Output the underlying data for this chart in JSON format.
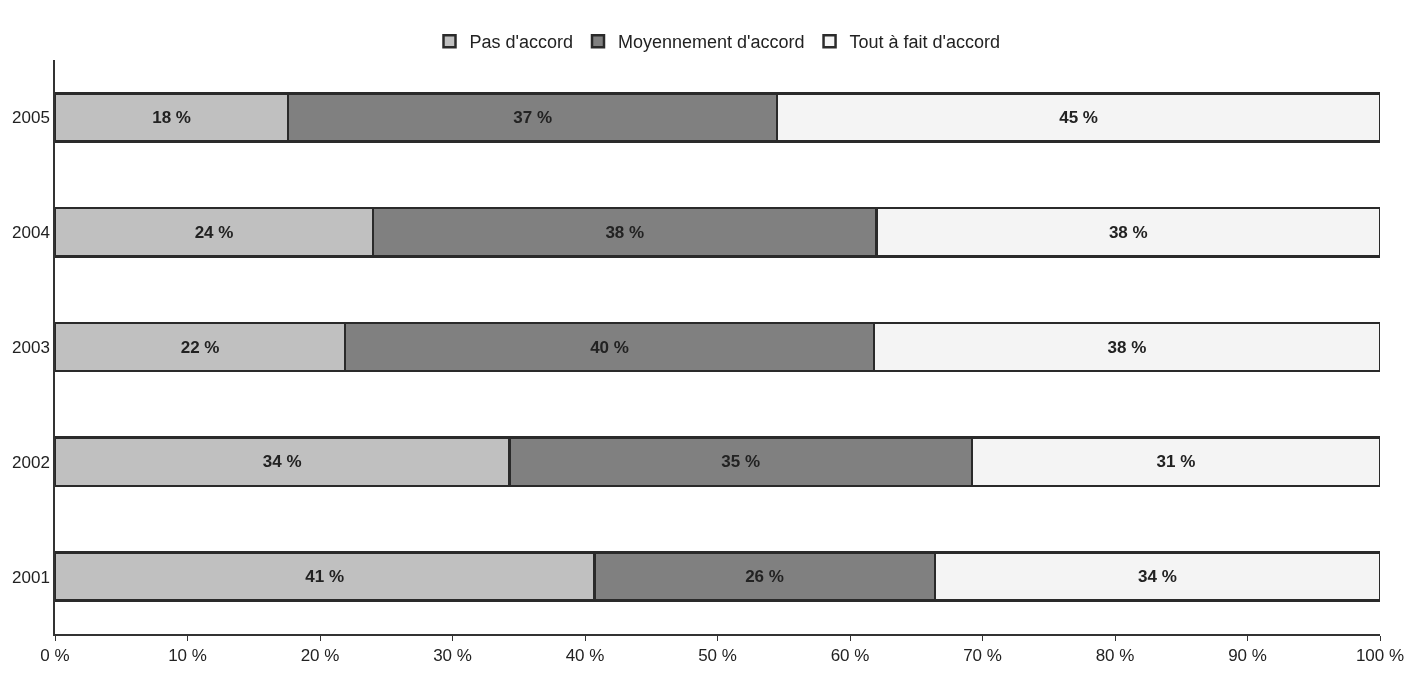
{
  "chart_data": {
    "type": "bar",
    "orientation": "horizontal",
    "stacked": true,
    "categories": [
      "2005",
      "2004",
      "2003",
      "2002",
      "2001"
    ],
    "series": [
      {
        "name": "Pas d'accord",
        "color": "#c0c0c0",
        "values": [
          17.6,
          24,
          21.9,
          34.3,
          40.7
        ],
        "value_labels": [
          "18 %",
          "24 %",
          "22 %",
          "34 %",
          "41 %"
        ]
      },
      {
        "name": "Moyennement d'accord",
        "color": "#808080",
        "values": [
          36.9,
          38,
          39.9,
          34.9,
          25.7
        ],
        "value_labels": [
          "37 %",
          "38 %",
          "40 %",
          "35 %",
          "26 %"
        ]
      },
      {
        "name": "Tout à fait d'accord",
        "color": "#f4f4f4",
        "values": [
          45.5,
          38,
          38.2,
          30.8,
          33.6
        ],
        "value_labels": [
          "45 %",
          "38 %",
          "38 %",
          "31 %",
          "34 %"
        ]
      }
    ],
    "xlim": [
      0,
      100
    ],
    "xticks": [
      {
        "value": 0,
        "label": "0 %"
      },
      {
        "value": 10,
        "label": "10 %"
      },
      {
        "value": 20,
        "label": "20 %"
      },
      {
        "value": 30,
        "label": "30 %"
      },
      {
        "value": 40,
        "label": "40 %"
      },
      {
        "value": 50,
        "label": "50 %"
      },
      {
        "value": 60,
        "label": "60 %"
      },
      {
        "value": 70,
        "label": "70 %"
      },
      {
        "value": 80,
        "label": "80 %"
      },
      {
        "value": 90,
        "label": "90 %"
      },
      {
        "value": 100,
        "label": "100 %"
      }
    ],
    "legend": "top"
  }
}
